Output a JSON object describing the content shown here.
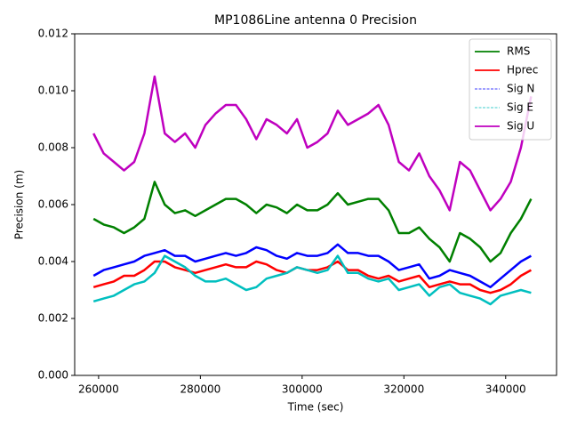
{
  "chart_data": {
    "type": "line",
    "title": "MP1086Line antenna 0 Precision",
    "x_label": "Time (sec)",
    "y_label": "Precision (m)",
    "x": [
      259000,
      261000,
      263000,
      265000,
      267000,
      269000,
      271000,
      273000,
      275000,
      277000,
      279000,
      281000,
      283000,
      285000,
      287000,
      289000,
      291000,
      293000,
      295000,
      297000,
      299000,
      301000,
      303000,
      305000,
      307000,
      309000,
      311000,
      313000,
      315000,
      317000,
      319000,
      321000,
      323000,
      325000,
      327000,
      329000,
      331000,
      333000,
      335000,
      337000,
      339000,
      341000,
      343000,
      345000
    ],
    "series": [
      {
        "name": "RMS",
        "color": "#008000",
        "linestyle": "solid",
        "values": [
          0.0055,
          0.0053,
          0.0052,
          0.005,
          0.0052,
          0.0055,
          0.0068,
          0.006,
          0.0057,
          0.0058,
          0.0056,
          0.0058,
          0.006,
          0.0062,
          0.0062,
          0.006,
          0.0057,
          0.006,
          0.0059,
          0.0057,
          0.006,
          0.0058,
          0.0058,
          0.006,
          0.0064,
          0.006,
          0.0061,
          0.0062,
          0.0062,
          0.0058,
          0.005,
          0.005,
          0.0052,
          0.0048,
          0.0045,
          0.004,
          0.005,
          0.0048,
          0.0045,
          0.004,
          0.0043,
          0.005,
          0.0055,
          0.0062
        ]
      },
      {
        "name": "Hprec",
        "color": "#ff0000",
        "linestyle": "solid",
        "values": [
          0.0031,
          0.0032,
          0.0033,
          0.0035,
          0.0035,
          0.0037,
          0.004,
          0.004,
          0.0038,
          0.0037,
          0.0036,
          0.0037,
          0.0038,
          0.0039,
          0.0038,
          0.0038,
          0.004,
          0.0039,
          0.0037,
          0.0036,
          0.0038,
          0.0037,
          0.0037,
          0.0038,
          0.004,
          0.0037,
          0.0037,
          0.0035,
          0.0034,
          0.0035,
          0.0033,
          0.0034,
          0.0035,
          0.0031,
          0.0032,
          0.0033,
          0.0032,
          0.0032,
          0.003,
          0.0029,
          0.003,
          0.0032,
          0.0035,
          0.0037
        ]
      },
      {
        "name": "Sig N",
        "color": "#0000ff",
        "linestyle": "dashed",
        "values": [
          0.0035,
          0.0037,
          0.0038,
          0.0039,
          0.004,
          0.0042,
          0.0043,
          0.0044,
          0.0042,
          0.0042,
          0.004,
          0.0041,
          0.0042,
          0.0043,
          0.0042,
          0.0043,
          0.0045,
          0.0044,
          0.0042,
          0.0041,
          0.0043,
          0.0042,
          0.0042,
          0.0043,
          0.0046,
          0.0043,
          0.0043,
          0.0042,
          0.0042,
          0.004,
          0.0037,
          0.0038,
          0.0039,
          0.0034,
          0.0035,
          0.0037,
          0.0036,
          0.0035,
          0.0033,
          0.0031,
          0.0034,
          0.0037,
          0.004,
          0.0042
        ]
      },
      {
        "name": "Sig E",
        "color": "#00bfbf",
        "linestyle": "dashed",
        "values": [
          0.0026,
          0.0027,
          0.0028,
          0.003,
          0.0032,
          0.0033,
          0.0036,
          0.0042,
          0.004,
          0.0038,
          0.0035,
          0.0033,
          0.0033,
          0.0034,
          0.0032,
          0.003,
          0.0031,
          0.0034,
          0.0035,
          0.0036,
          0.0038,
          0.0037,
          0.0036,
          0.0037,
          0.0042,
          0.0036,
          0.0036,
          0.0034,
          0.0033,
          0.0034,
          0.003,
          0.0031,
          0.0032,
          0.0028,
          0.0031,
          0.0032,
          0.0029,
          0.0028,
          0.0027,
          0.0025,
          0.0028,
          0.0029,
          0.003,
          0.0029
        ]
      },
      {
        "name": "Sig U",
        "color": "#bf00bf",
        "linestyle": "solid",
        "values": [
          0.0085,
          0.0078,
          0.0075,
          0.0072,
          0.0075,
          0.0085,
          0.0105,
          0.0085,
          0.0082,
          0.0085,
          0.008,
          0.0088,
          0.0092,
          0.0095,
          0.0095,
          0.009,
          0.0083,
          0.009,
          0.0088,
          0.0085,
          0.009,
          0.008,
          0.0082,
          0.0085,
          0.0093,
          0.0088,
          0.009,
          0.0092,
          0.0095,
          0.0088,
          0.0075,
          0.0072,
          0.0078,
          0.007,
          0.0065,
          0.0058,
          0.0075,
          0.0072,
          0.0065,
          0.0058,
          0.0062,
          0.0068,
          0.008,
          0.0098
        ]
      }
    ],
    "xlim": [
      255300,
      350000
    ],
    "xticks": [
      260000,
      280000,
      300000,
      320000,
      340000
    ],
    "ylim": [
      0,
      0.012
    ],
    "yticks": [
      {
        "value": 0,
        "label": "0.000"
      },
      {
        "value": 0.002,
        "label": "0.002"
      },
      {
        "value": 0.004,
        "label": "0.004"
      },
      {
        "value": 0.006,
        "label": "0.006"
      },
      {
        "value": 0.008,
        "label": "0.008"
      },
      {
        "value": 0.01,
        "label": "0.010"
      },
      {
        "value": 0.012,
        "label": "0.012"
      }
    ],
    "legend": "upper right"
  }
}
